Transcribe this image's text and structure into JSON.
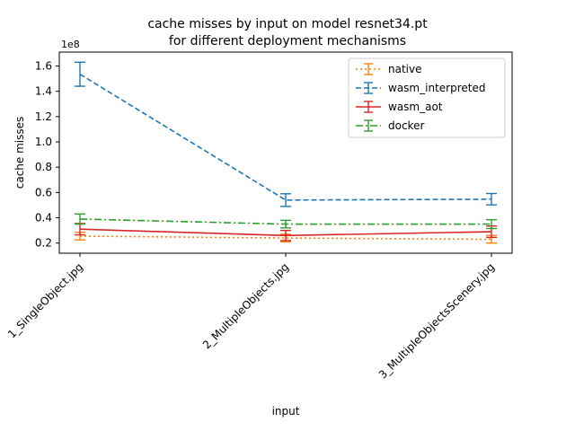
{
  "chart_data": {
    "type": "line",
    "title": "cache misses by input on model resnet34.pt",
    "subtitle": "for different deployment mechanisms",
    "xlabel": "input",
    "ylabel": "cache misses",
    "y_multiplier_label": "1e8",
    "categories": [
      "1_SingleObject.jpg",
      "2_MultipleObjects.jpg",
      "3_MultipleObjectsScenery.jpg"
    ],
    "y_ticks": [
      "0.2",
      "0.4",
      "0.6",
      "0.8",
      "1.0",
      "1.2",
      "1.4",
      "1.6"
    ],
    "ylim": [
      0.12,
      1.71
    ],
    "legend_position": "top-right",
    "grid": false,
    "series": [
      {
        "name": "native",
        "color": "#ff7f0e",
        "dash": "2,3",
        "values": [
          0.255,
          0.24,
          0.23
        ],
        "err": [
          0.03,
          0.03,
          0.03
        ]
      },
      {
        "name": "wasm_interpreted",
        "color": "#1f77b4",
        "dash": "6,3",
        "values": [
          1.535,
          0.54,
          0.547
        ],
        "err": [
          0.095,
          0.05,
          0.045
        ]
      },
      {
        "name": "wasm_aot",
        "color": "#d62728",
        "dash": "",
        "values": [
          0.31,
          0.26,
          0.29
        ],
        "err": [
          0.045,
          0.04,
          0.045
        ]
      },
      {
        "name": "docker",
        "color": "#2ca02c",
        "dash": "8,3,2,3",
        "values": [
          0.39,
          0.35,
          0.35
        ],
        "err": [
          0.04,
          0.03,
          0.035
        ]
      }
    ]
  }
}
